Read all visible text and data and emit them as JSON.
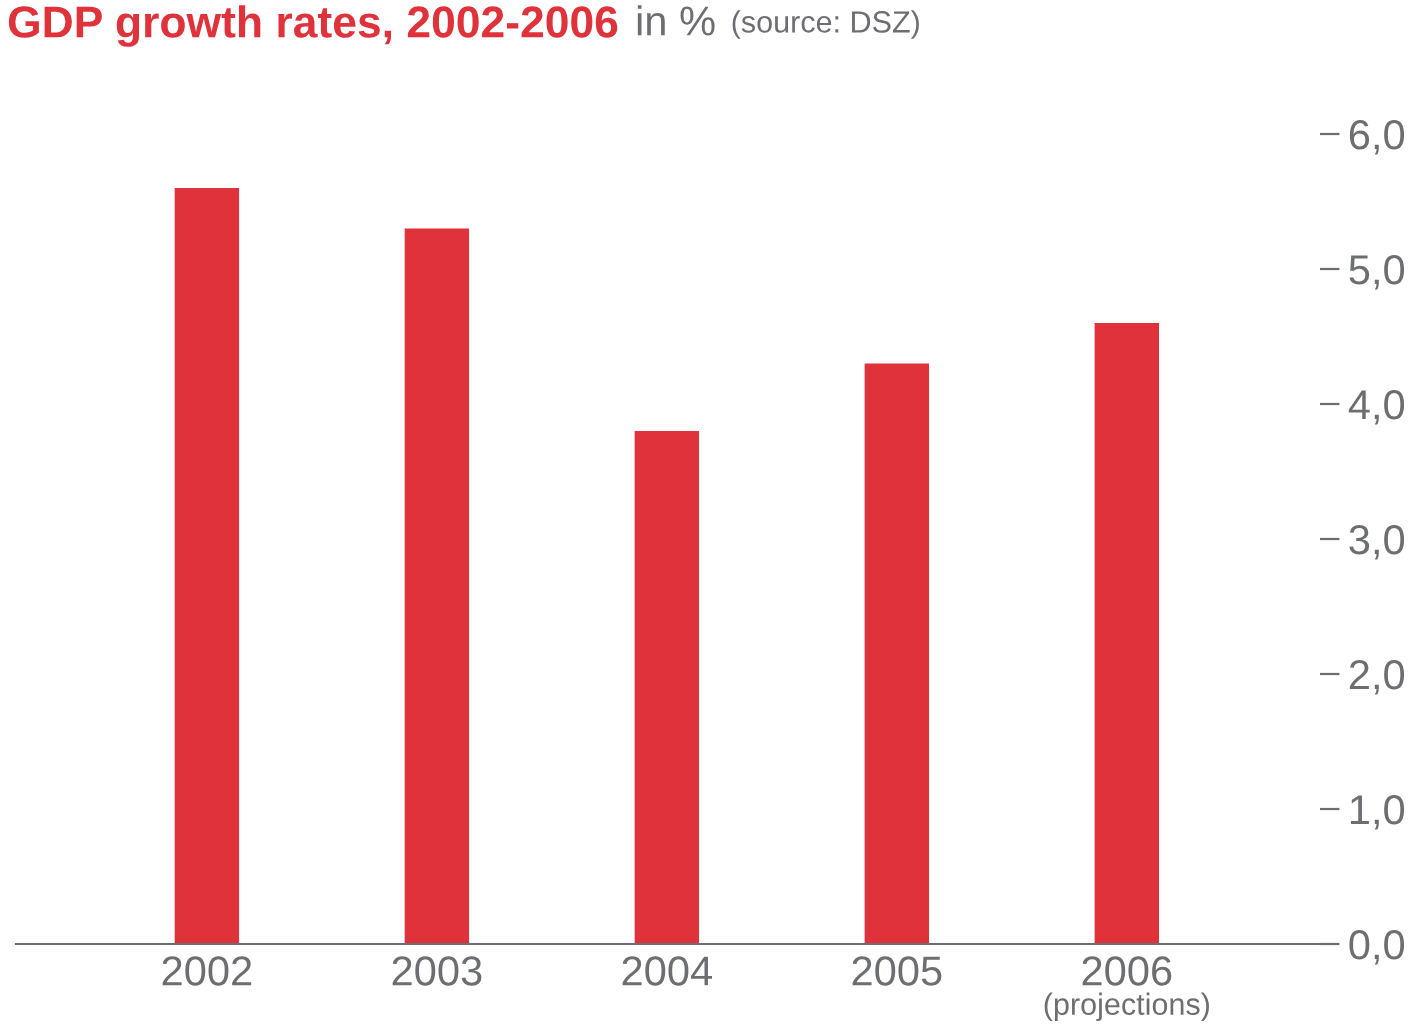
{
  "chart_data": {
    "type": "bar",
    "title": "GDP growth rates, 2002-2006",
    "subtitle": "in %",
    "annotations": [
      "(source: DSZ)",
      "(projections)"
    ],
    "categories": [
      "2002",
      "2003",
      "2004",
      "2005",
      "2006"
    ],
    "values": [
      5.6,
      5.3,
      3.8,
      4.3,
      4.6
    ],
    "color": "#e0323a",
    "ylim": [
      0,
      6
    ],
    "yticks": [
      {
        "value": 0,
        "label": "0,0"
      },
      {
        "value": 1,
        "label": "1,0"
      },
      {
        "value": 2,
        "label": "2,0"
      },
      {
        "value": 3,
        "label": "3,0"
      },
      {
        "value": 4,
        "label": "4,0"
      },
      {
        "value": 5,
        "label": "5,0"
      },
      {
        "value": 6,
        "label": "6,0"
      }
    ],
    "grid": false,
    "legend": false
  }
}
